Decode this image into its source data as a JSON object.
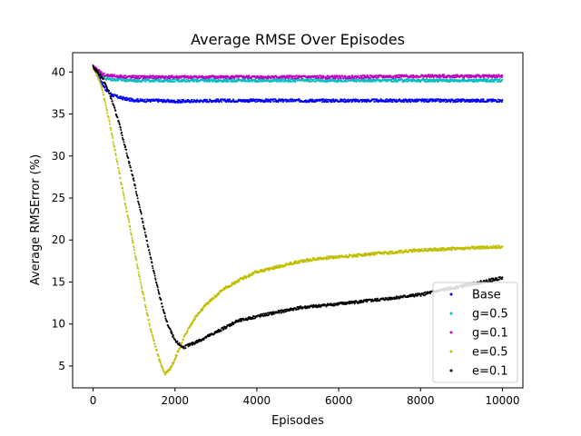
{
  "chart_data": {
    "type": "scatter",
    "title": "Average RMSE Over Episodes",
    "xlabel": "Episodes",
    "ylabel": "Average RMSError (%)",
    "xlim": [
      -500,
      10500
    ],
    "ylim": [
      2.4,
      42.3
    ],
    "xticks": [
      0,
      2000,
      4000,
      6000,
      8000,
      10000
    ],
    "yticks": [
      5,
      10,
      15,
      20,
      25,
      30,
      35,
      40
    ],
    "legend_position": "lower-right",
    "series": [
      {
        "name": "Base",
        "color": "#0000ff",
        "points": [
          [
            0,
            40.6
          ],
          [
            100,
            40.0
          ],
          [
            200,
            38.8
          ],
          [
            300,
            38.0
          ],
          [
            400,
            37.5
          ],
          [
            500,
            37.2
          ],
          [
            700,
            36.9
          ],
          [
            900,
            36.7
          ],
          [
            1200,
            36.6
          ],
          [
            1600,
            36.6
          ],
          [
            2000,
            36.5
          ],
          [
            3000,
            36.6
          ],
          [
            4000,
            36.6
          ],
          [
            5000,
            36.6
          ],
          [
            6000,
            36.6
          ],
          [
            7000,
            36.6
          ],
          [
            8000,
            36.6
          ],
          [
            9000,
            36.6
          ],
          [
            10000,
            36.6
          ]
        ]
      },
      {
        "name": "g=0.5",
        "color": "#00bfbf",
        "points": [
          [
            0,
            40.6
          ],
          [
            100,
            40.2
          ],
          [
            200,
            39.6
          ],
          [
            300,
            39.2
          ],
          [
            500,
            39.1
          ],
          [
            1000,
            39.0
          ],
          [
            2000,
            39.0
          ],
          [
            4000,
            39.0
          ],
          [
            6000,
            39.0
          ],
          [
            8000,
            39.0
          ],
          [
            10000,
            39.0
          ]
        ]
      },
      {
        "name": "g=0.1",
        "color": "#bf00bf",
        "points": [
          [
            0,
            40.6
          ],
          [
            100,
            40.3
          ],
          [
            200,
            39.9
          ],
          [
            300,
            39.6
          ],
          [
            500,
            39.5
          ],
          [
            1000,
            39.4
          ],
          [
            2000,
            39.4
          ],
          [
            4000,
            39.4
          ],
          [
            6000,
            39.4
          ],
          [
            8000,
            39.5
          ],
          [
            10000,
            39.5
          ]
        ]
      },
      {
        "name": "e=0.5",
        "color": "#bfbf00",
        "points": [
          [
            0,
            40.6
          ],
          [
            200,
            38.5
          ],
          [
            400,
            34.0
          ],
          [
            600,
            29.0
          ],
          [
            800,
            24.0
          ],
          [
            1000,
            19.0
          ],
          [
            1200,
            14.0
          ],
          [
            1400,
            9.5
          ],
          [
            1600,
            6.0
          ],
          [
            1750,
            4.1
          ],
          [
            1900,
            4.8
          ],
          [
            2100,
            7.0
          ],
          [
            2300,
            9.2
          ],
          [
            2500,
            10.8
          ],
          [
            2800,
            12.5
          ],
          [
            3200,
            14.2
          ],
          [
            3600,
            15.3
          ],
          [
            4000,
            16.2
          ],
          [
            4500,
            16.8
          ],
          [
            5000,
            17.4
          ],
          [
            5500,
            17.8
          ],
          [
            6000,
            18.0
          ],
          [
            7000,
            18.4
          ],
          [
            8000,
            18.8
          ],
          [
            9000,
            19.0
          ],
          [
            10000,
            19.2
          ]
        ]
      },
      {
        "name": "e=0.1",
        "color": "#000000",
        "points": [
          [
            0,
            40.6
          ],
          [
            200,
            39.5
          ],
          [
            400,
            37.5
          ],
          [
            600,
            34.5
          ],
          [
            800,
            30.8
          ],
          [
            1000,
            27.0
          ],
          [
            1200,
            22.5
          ],
          [
            1400,
            18.0
          ],
          [
            1600,
            13.8
          ],
          [
            1800,
            10.2
          ],
          [
            2000,
            8.0
          ],
          [
            2200,
            7.2
          ],
          [
            2500,
            7.8
          ],
          [
            3000,
            9.0
          ],
          [
            3500,
            10.3
          ],
          [
            4000,
            10.9
          ],
          [
            4500,
            11.4
          ],
          [
            5000,
            11.9
          ],
          [
            6000,
            12.4
          ],
          [
            7000,
            12.9
          ],
          [
            8000,
            13.5
          ],
          [
            9000,
            14.5
          ],
          [
            10000,
            15.5
          ]
        ]
      }
    ]
  }
}
